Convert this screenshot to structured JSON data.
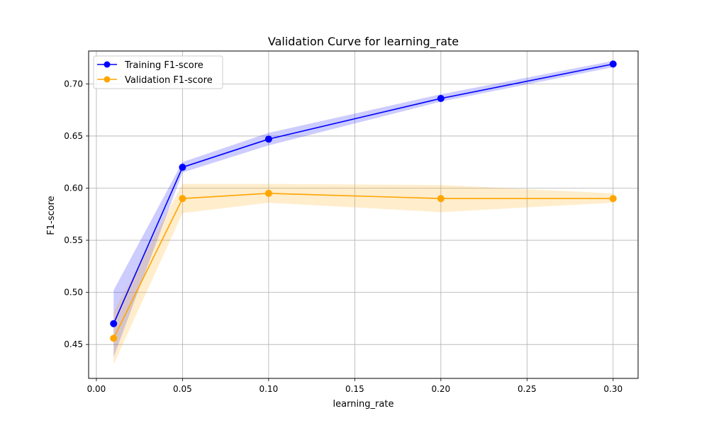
{
  "chart_data": {
    "type": "line",
    "title": "Validation Curve for learning_rate",
    "xlabel": "learning_rate",
    "ylabel": "F1-score",
    "xlim": [
      -0.0045,
      0.3145
    ],
    "ylim": [
      0.4175,
      0.7315
    ],
    "xticks": [
      0.0,
      0.05,
      0.1,
      0.15,
      0.2,
      0.25,
      0.3
    ],
    "xtick_labels": [
      "0.00",
      "0.05",
      "0.10",
      "0.15",
      "0.20",
      "0.25",
      "0.30"
    ],
    "yticks": [
      0.45,
      0.5,
      0.55,
      0.6,
      0.65,
      0.7
    ],
    "ytick_labels": [
      "0.45",
      "0.50",
      "0.55",
      "0.60",
      "0.65",
      "0.70"
    ],
    "grid": true,
    "legend_position": "top-left",
    "x": [
      0.01,
      0.05,
      0.1,
      0.2,
      0.3
    ],
    "series": [
      {
        "name": "Training F1-score",
        "color": "#0000ff",
        "band_color": "#0000ff",
        "values": [
          0.47,
          0.62,
          0.647,
          0.686,
          0.719
        ],
        "lower": [
          0.438,
          0.615,
          0.641,
          0.683,
          0.716
        ],
        "upper": [
          0.502,
          0.625,
          0.653,
          0.69,
          0.722
        ]
      },
      {
        "name": "Validation F1-score",
        "color": "#ffa500",
        "band_color": "#ffa500",
        "values": [
          0.456,
          0.59,
          0.595,
          0.59,
          0.59
        ],
        "lower": [
          0.431,
          0.576,
          0.586,
          0.577,
          0.586
        ],
        "upper": [
          0.481,
          0.604,
          0.604,
          0.603,
          0.595
        ]
      }
    ]
  }
}
